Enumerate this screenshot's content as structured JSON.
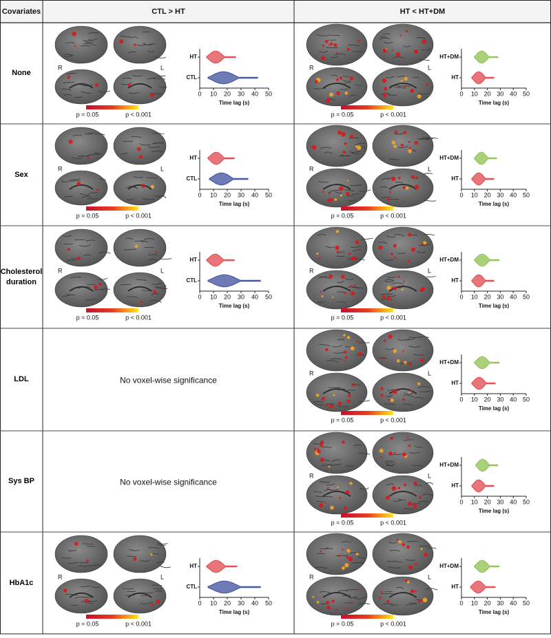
{
  "table": {
    "header": [
      "Covariates",
      "CTL > HT",
      "HT < HT+DM"
    ],
    "rows": [
      {
        "covariate": "None",
        "cells": [
          {
            "hemispheres": [
              "R",
              "L"
            ],
            "colorbar": [
              "p = 0.05",
              "p < 0.001"
            ],
            "violin": {
              "xlabel": "Time lag (s)",
              "xlim": [
                0,
                50
              ],
              "xticks": [
                0,
                10,
                20,
                30,
                40,
                50
              ],
              "groups": [
                {
                  "name": "HT",
                  "color": "#e0474c",
                  "range": [
                    5,
                    26
                  ]
                },
                {
                  "name": "CTL",
                  "color": "#3d4f9e",
                  "range": [
                    6,
                    42
                  ]
                }
              ]
            }
          },
          {
            "hemispheres": [
              "R",
              "L"
            ],
            "colorbar": [
              "p = 0.05",
              "p < 0.001"
            ],
            "violin": {
              "xlabel": "Time lag (s)",
              "xlim": [
                0,
                50
              ],
              "xticks": [
                0,
                10,
                20,
                30,
                40,
                50
              ],
              "groups": [
                {
                  "name": "HT+DM",
                  "color": "#8dc04f",
                  "range": [
                    10,
                    28
                  ]
                },
                {
                  "name": "HT",
                  "color": "#e0474c",
                  "range": [
                    8,
                    25
                  ]
                }
              ]
            }
          }
        ]
      },
      {
        "covariate": "Sex",
        "cells": [
          {
            "hemispheres": [
              "R",
              "L"
            ],
            "colorbar": [
              "p = 0.05",
              "p < 0.001"
            ],
            "violin": {
              "xlabel": "Time lag (s)",
              "xlim": [
                0,
                50
              ],
              "xticks": [
                0,
                10,
                20,
                30,
                40,
                50
              ],
              "groups": [
                {
                  "name": "HT",
                  "color": "#e0474c",
                  "range": [
                    6,
                    25
                  ]
                },
                {
                  "name": "CTL",
                  "color": "#3d4f9e",
                  "range": [
                    7,
                    35
                  ]
                }
              ]
            }
          },
          {
            "hemispheres": [
              "R",
              "L"
            ],
            "colorbar": [
              "p = 0.05",
              "p < 0.001"
            ],
            "violin": {
              "xlabel": "Time lag (s)",
              "xlim": [
                0,
                50
              ],
              "xticks": [
                0,
                10,
                20,
                30,
                40,
                50
              ],
              "groups": [
                {
                  "name": "HT+DM",
                  "color": "#8dc04f",
                  "range": [
                    10,
                    27
                  ]
                },
                {
                  "name": "HT",
                  "color": "#e0474c",
                  "range": [
                    8,
                    25
                  ]
                }
              ]
            }
          }
        ]
      },
      {
        "covariate": "Cholesterol duration",
        "cells": [
          {
            "hemispheres": [
              "R",
              "L"
            ],
            "colorbar": [
              "p = 0.05",
              "p < 0.001"
            ],
            "violin": {
              "xlabel": "Time lag (s)",
              "xlim": [
                0,
                50
              ],
              "xticks": [
                0,
                10,
                20,
                30,
                40,
                50
              ],
              "groups": [
                {
                  "name": "HT",
                  "color": "#e0474c",
                  "range": [
                    5,
                    25
                  ]
                },
                {
                  "name": "CTL",
                  "color": "#3d4f9e",
                  "range": [
                    6,
                    44
                  ]
                }
              ]
            }
          },
          {
            "hemispheres": [
              "R",
              "L"
            ],
            "colorbar": [
              "p = 0.05",
              "p < 0.001"
            ],
            "violin": {
              "xlabel": "Time lag (s)",
              "xlim": [
                0,
                50
              ],
              "xticks": [
                0,
                10,
                20,
                30,
                40,
                50
              ],
              "groups": [
                {
                  "name": "HT+DM",
                  "color": "#8dc04f",
                  "range": [
                    10,
                    29
                  ]
                },
                {
                  "name": "HT",
                  "color": "#e0474c",
                  "range": [
                    8,
                    25
                  ]
                }
              ]
            }
          }
        ]
      },
      {
        "covariate": "LDL",
        "cells": [
          {
            "text": "No voxel-wise significance"
          },
          {
            "hemispheres": [
              "R",
              "L"
            ],
            "colorbar": [
              "p = 0.05",
              "p < 0.001"
            ],
            "violin": {
              "xlabel": "Time lag (s)",
              "xlim": [
                0,
                50
              ],
              "xticks": [
                0,
                10,
                20,
                30,
                40,
                50
              ],
              "groups": [
                {
                  "name": "HT+DM",
                  "color": "#8dc04f",
                  "range": [
                    10,
                    29
                  ]
                },
                {
                  "name": "HT",
                  "color": "#e0474c",
                  "range": [
                    8,
                    26
                  ]
                }
              ]
            }
          }
        ]
      },
      {
        "covariate": "Sys BP",
        "cells": [
          {
            "text": "No voxel-wise significance"
          },
          {
            "hemispheres": [
              "R",
              "L"
            ],
            "colorbar": [
              "p = 0.05",
              "p < 0.001"
            ],
            "violin": {
              "xlabel": "Time lag (s)",
              "xlim": [
                0,
                50
              ],
              "xticks": [
                0,
                10,
                20,
                30,
                40,
                50
              ],
              "groups": [
                {
                  "name": "HT+DM",
                  "color": "#8dc04f",
                  "range": [
                    11,
                    28
                  ]
                },
                {
                  "name": "HT",
                  "color": "#e0474c",
                  "range": [
                    8,
                    25
                  ]
                }
              ]
            }
          }
        ]
      },
      {
        "covariate": "HbA1c",
        "cells": [
          {
            "hemispheres": [
              "R",
              "L"
            ],
            "colorbar": [
              "p = 0.05",
              "p < 0.001"
            ],
            "violin": {
              "xlabel": "Time lag (s)",
              "xlim": [
                0,
                50
              ],
              "xticks": [
                0,
                10,
                20,
                30,
                40,
                50
              ],
              "groups": [
                {
                  "name": "HT",
                  "color": "#e0474c",
                  "range": [
                    5,
                    27
                  ]
                },
                {
                  "name": "CTL",
                  "color": "#3d4f9e",
                  "range": [
                    6,
                    44
                  ]
                }
              ]
            }
          },
          {
            "hemispheres": [
              "R",
              "L"
            ],
            "colorbar": [
              "p = 0.05",
              "p < 0.001"
            ],
            "violin": {
              "xlabel": "Time lag (s)",
              "xlim": [
                0,
                50
              ],
              "xticks": [
                0,
                10,
                20,
                30,
                40,
                50
              ],
              "groups": [
                {
                  "name": "HT+DM",
                  "color": "#8dc04f",
                  "range": [
                    10,
                    29
                  ]
                },
                {
                  "name": "HT",
                  "color": "#e0474c",
                  "range": [
                    7,
                    26
                  ]
                }
              ]
            }
          }
        ]
      }
    ]
  }
}
